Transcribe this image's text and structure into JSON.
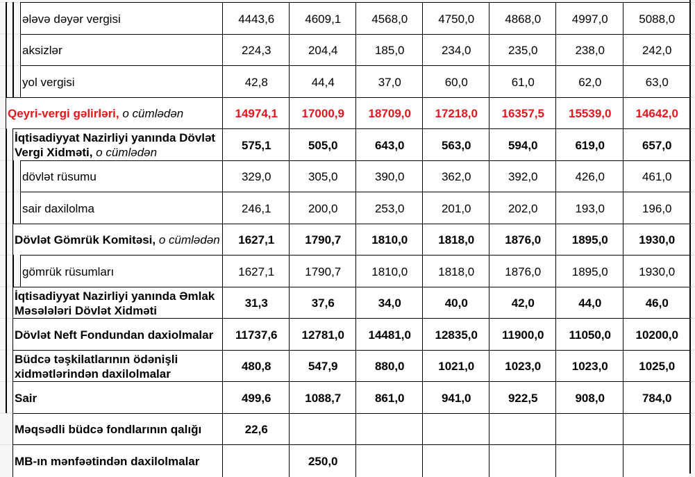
{
  "table": {
    "rows": [
      {
        "label": "ələvə dəyər vergisi",
        "suffix": "",
        "level": 2,
        "style": "normal",
        "values": [
          "4443,6",
          "4609,1",
          "4568,0",
          "4750,0",
          "4868,0",
          "4997,0",
          "5088,0"
        ]
      },
      {
        "label": "aksizlər",
        "suffix": "",
        "level": 2,
        "style": "normal",
        "values": [
          "224,3",
          "204,4",
          "185,0",
          "234,0",
          "235,0",
          "238,0",
          "242,0"
        ]
      },
      {
        "label": "yol vergisi",
        "suffix": "",
        "level": 2,
        "style": "normal",
        "values": [
          "42,8",
          "44,4",
          "37,0",
          "60,0",
          "61,0",
          "62,0",
          "63,0"
        ]
      },
      {
        "label": "Qeyri-vergi gəlirləri,",
        "suffix": "o cümlədən",
        "level": 0,
        "style": "red",
        "values": [
          "14974,1",
          "17000,9",
          "18709,0",
          "17218,0",
          "16357,5",
          "15539,0",
          "14642,0"
        ]
      },
      {
        "label": "İqtisadiyyat Nazirliyi yanında Dövlət Vergi Xidməti,",
        "suffix": "o cümlədən",
        "level": 1,
        "style": "bold",
        "values": [
          "575,1",
          "505,0",
          "643,0",
          "563,0",
          "594,0",
          "619,0",
          "657,0"
        ]
      },
      {
        "label": "dövlət rüsumu",
        "suffix": "",
        "level": 2,
        "style": "normal",
        "values": [
          "329,0",
          "305,0",
          "390,0",
          "362,0",
          "392,0",
          "426,0",
          "461,0"
        ]
      },
      {
        "label": "sair daxilolma",
        "suffix": "",
        "level": 2,
        "style": "normal",
        "values": [
          "246,1",
          "200,0",
          "253,0",
          "201,0",
          "202,0",
          "193,0",
          "196,0"
        ]
      },
      {
        "label": "Dövlət Gömrük Komitəsi,",
        "suffix": "o cümlədən",
        "level": 1,
        "style": "bold",
        "values": [
          "1627,1",
          "1790,7",
          "1810,0",
          "1818,0",
          "1876,0",
          "1895,0",
          "1930,0"
        ]
      },
      {
        "label": "gömrük rüsumları",
        "suffix": "",
        "level": 2,
        "style": "normal",
        "values": [
          "1627,1",
          "1790,7",
          "1810,0",
          "1818,0",
          "1876,0",
          "1895,0",
          "1930,0"
        ]
      },
      {
        "label": "İqtisadiyyat Nazirliyi yanında Əmlak Məsələləri Dövlət Xidməti",
        "suffix": "",
        "level": 1,
        "style": "bold",
        "values": [
          "31,3",
          "37,6",
          "34,0",
          "40,0",
          "42,0",
          "44,0",
          "46,0"
        ]
      },
      {
        "label": "Dövlət Neft Fondundan daxiolmalar",
        "suffix": "",
        "level": 1,
        "style": "bold",
        "values": [
          "11737,6",
          "12781,0",
          "14481,0",
          "12835,0",
          "11900,0",
          "11050,0",
          "10200,0"
        ]
      },
      {
        "label": "Büdcə təşkilatlarının ödənişli xidmətlərindən daxilolmalar",
        "suffix": "",
        "level": 1,
        "style": "bold",
        "values": [
          "480,8",
          "547,9",
          "880,0",
          "1021,0",
          "1023,0",
          "1023,0",
          "1025,0"
        ]
      },
      {
        "label": "Sair",
        "suffix": "",
        "level": 1,
        "style": "bold",
        "values": [
          "499,6",
          "1088,7",
          "861,0",
          "941,0",
          "922,5",
          "908,0",
          "784,0"
        ]
      },
      {
        "label": "Məqsədli büdcə fondlarının qalığı",
        "suffix": "",
        "level": 1,
        "style": "bold",
        "outer": false,
        "values": [
          "22,6",
          "",
          "",
          "",
          "",
          "",
          ""
        ]
      },
      {
        "label": "MB-ın mənfəətindən daxilolmalar",
        "suffix": "",
        "level": 1,
        "style": "bold",
        "outer": false,
        "values": [
          "",
          "250,0",
          "",
          "",
          "",
          "",
          ""
        ]
      }
    ],
    "colors": {
      "highlight": "#e8141a",
      "border": "#000000"
    }
  }
}
